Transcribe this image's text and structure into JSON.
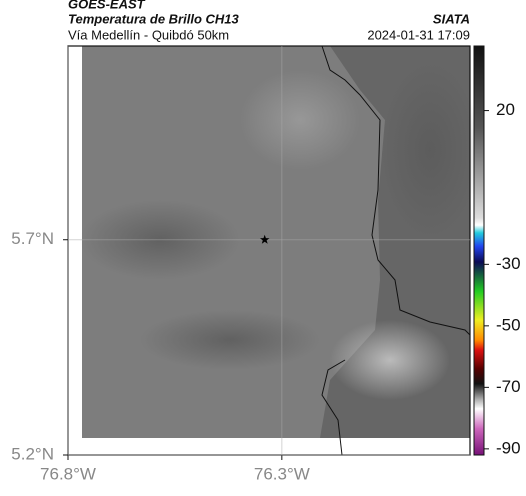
{
  "header": {
    "source": "GOES-EAST",
    "title": "Temperatura de Brillo CH13",
    "route": "Vía Medellín - Quibdó 50km",
    "org": "SIATA",
    "datetime": "2024-01-31 17:09"
  },
  "map": {
    "xlim": [
      -76.8,
      -75.86
    ],
    "ylim": [
      5.2,
      6.15
    ],
    "xticks": [
      {
        "value": -76.8,
        "label": "76.8°W"
      },
      {
        "value": -76.3,
        "label": "76.3°W"
      }
    ],
    "yticks": [
      {
        "value": 5.2,
        "label": "5.2°N"
      },
      {
        "value": 5.7,
        "label": "5.7°N"
      }
    ],
    "marker": {
      "lon": -76.34,
      "lat": 5.7
    }
  },
  "colorbar": {
    "lim": [
      -92,
      41
    ],
    "ticks": [
      20,
      -30,
      -50,
      -70,
      -90
    ]
  }
}
